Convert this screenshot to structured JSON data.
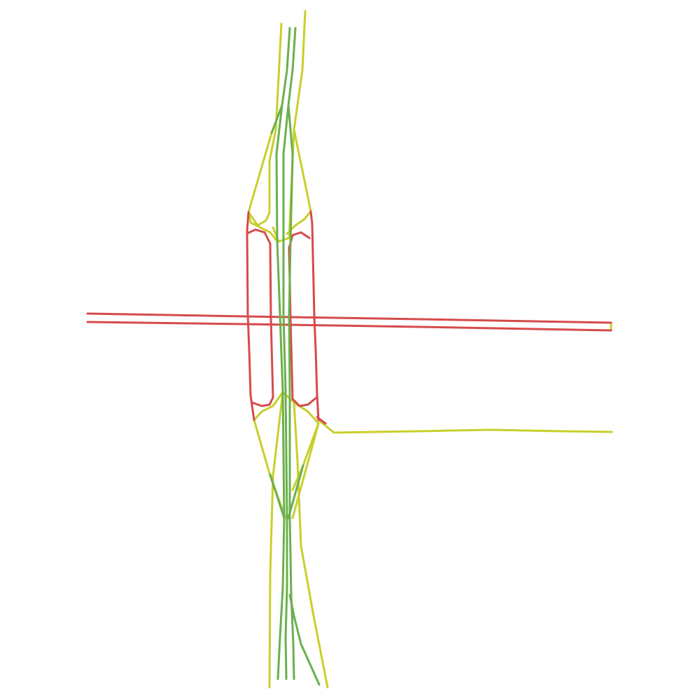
{
  "legend_classes": {
    "red": {
      "color": "#d64a4a"
    },
    "yellow": {
      "color": "#c8cf2a"
    },
    "green": {
      "color": "#6ab04c"
    }
  }
}
